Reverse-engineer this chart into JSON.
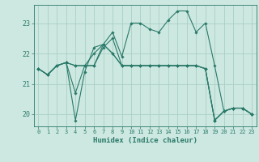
{
  "xlabel": "Humidex (Indice chaleur)",
  "background_color": "#cde8e0",
  "line_color": "#2a7a6a",
  "grid_color": "#aacfc5",
  "xlim": [
    -0.5,
    23.5
  ],
  "ylim": [
    19.6,
    23.6
  ],
  "yticks": [
    20,
    21,
    22,
    23
  ],
  "xticks": [
    0,
    1,
    2,
    3,
    4,
    5,
    6,
    7,
    8,
    9,
    10,
    11,
    12,
    13,
    14,
    15,
    16,
    17,
    18,
    19,
    20,
    21,
    22,
    23
  ],
  "series": [
    [
      21.5,
      21.3,
      21.6,
      21.7,
      21.6,
      21.6,
      21.6,
      22.3,
      22.7,
      21.9,
      23.0,
      23.0,
      22.8,
      22.7,
      23.1,
      23.4,
      23.4,
      22.7,
      23.0,
      21.6,
      20.1,
      20.2,
      20.2,
      20.0
    ],
    [
      21.5,
      21.3,
      21.6,
      21.7,
      20.7,
      21.6,
      22.0,
      22.3,
      22.0,
      21.6,
      21.6,
      21.6,
      21.6,
      21.6,
      21.6,
      21.6,
      21.6,
      21.6,
      21.5,
      19.8,
      20.1,
      20.2,
      20.2,
      20.0
    ],
    [
      21.5,
      21.3,
      21.6,
      21.7,
      19.8,
      21.4,
      22.2,
      22.3,
      22.0,
      21.6,
      21.6,
      21.6,
      21.6,
      21.6,
      21.6,
      21.6,
      21.6,
      21.6,
      21.5,
      19.8,
      20.1,
      20.2,
      20.2,
      20.0
    ],
    [
      21.5,
      21.3,
      21.6,
      21.7,
      21.6,
      21.6,
      21.6,
      22.2,
      22.5,
      21.6,
      21.6,
      21.6,
      21.6,
      21.6,
      21.6,
      21.6,
      21.6,
      21.6,
      21.5,
      19.8,
      20.1,
      20.2,
      20.2,
      20.0
    ]
  ]
}
